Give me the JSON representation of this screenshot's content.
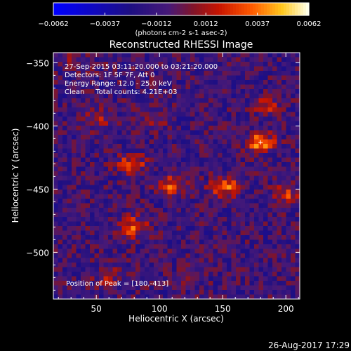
{
  "chart_data": {
    "type": "heatmap",
    "title": "Reconstructed RHESSI Image",
    "xlabel": "Heliocentric X (arcsec)",
    "ylabel": "Heliocentric Y (arcsec)",
    "xlim": [
      16,
      211
    ],
    "ylim": [
      -537,
      -342
    ],
    "x_ticks": [
      50,
      100,
      150,
      200
    ],
    "y_ticks": [
      -350,
      -400,
      -450,
      -500
    ],
    "colorbar": {
      "min": -0.0062,
      "max": 0.0062,
      "tick_values": [
        -0.0062,
        -0.0037,
        -0.0012,
        0.0012,
        0.0037,
        0.0062
      ],
      "tick_labels": [
        "-0.0062",
        "-0.0037",
        "-0.0012",
        "0.0012",
        "0.0037",
        "0.0062"
      ],
      "unit_label": "(photons cm-2 s-1 asec-2)"
    },
    "annotations": [
      "27-Sep-2015 03:11:20.000 to 03:21:20.000",
      "Detectors: 1F 5F 7F, Att 0",
      "Energy Range: 12.0 - 25.0 keV",
      "Clean     Total counts: 4.21E+03"
    ],
    "peak_label": "Position of Peak = [180,-413]",
    "peak_position": [
      180,
      -413
    ],
    "sources": [
      {
        "x": 180,
        "y": -413,
        "value": 0.0062
      },
      {
        "x": 152,
        "y": -448,
        "value": 0.0055
      },
      {
        "x": 110,
        "y": -447,
        "value": 0.0045
      },
      {
        "x": 78,
        "y": -430,
        "value": 0.0042
      },
      {
        "x": 80,
        "y": -480,
        "value": 0.005
      },
      {
        "x": 50,
        "y": -395,
        "value": 0.003
      },
      {
        "x": 95,
        "y": -395,
        "value": 0.0028
      },
      {
        "x": 200,
        "y": -455,
        "value": 0.004
      },
      {
        "x": 185,
        "y": -385,
        "value": 0.003
      },
      {
        "x": 60,
        "y": -520,
        "value": 0.0022
      },
      {
        "x": 35,
        "y": -350,
        "value": 0.0018
      },
      {
        "x": 125,
        "y": -520,
        "value": 0.0016
      }
    ]
  },
  "footer": {
    "timestamp": "26-Aug-2017 17:29"
  }
}
